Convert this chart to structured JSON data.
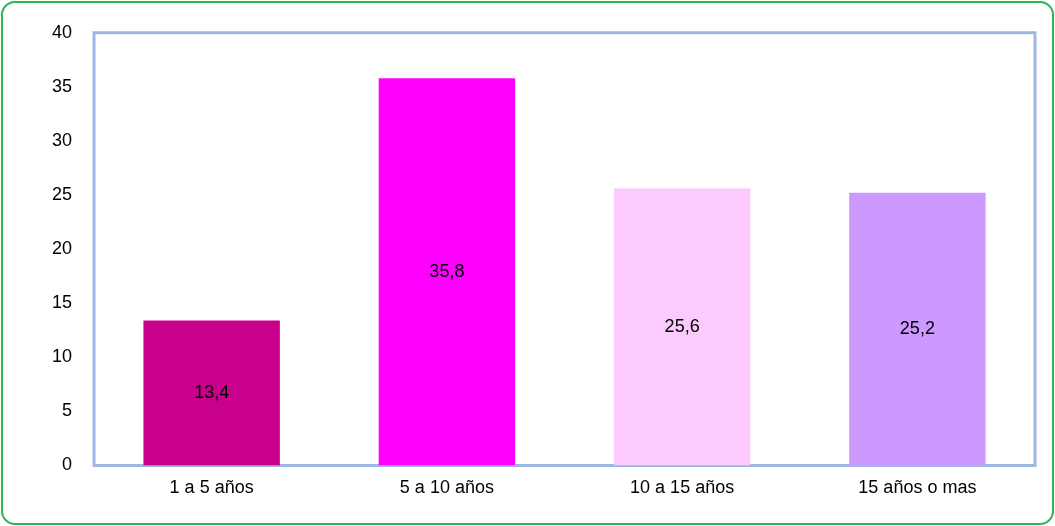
{
  "chart_data": {
    "type": "bar",
    "categories": [
      "1 a 5 años",
      "5 a 10 años",
      "10 a 15 años",
      "15 años o mas"
    ],
    "values": [
      13.4,
      35.8,
      25.6,
      25.2
    ],
    "colors": [
      "#c8008c",
      "#ff00ff",
      "#fccafc",
      "#cc99ff"
    ],
    "value_labels": [
      "13,4",
      "35,8",
      "25,6",
      "25,2"
    ],
    "ylim": [
      0,
      40
    ],
    "yticks": [
      0,
      5,
      10,
      15,
      20,
      25,
      30,
      35,
      40
    ],
    "grid": false,
    "legend": false
  }
}
